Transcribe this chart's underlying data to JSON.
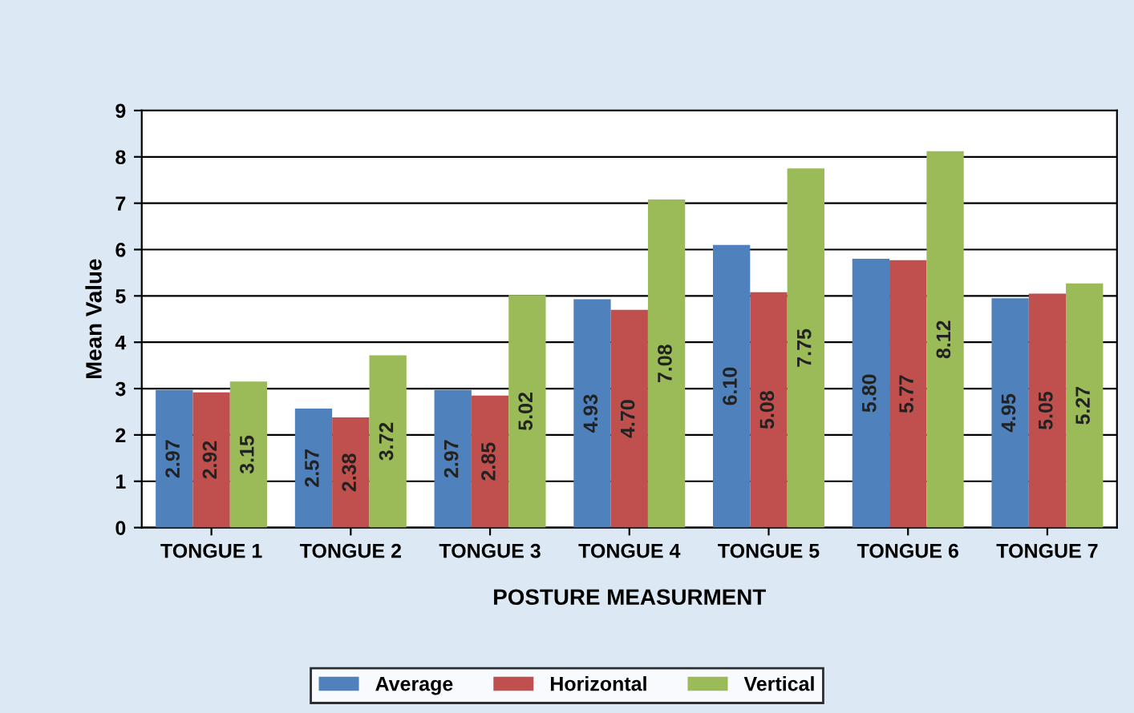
{
  "chart_data": {
    "type": "bar",
    "xlabel": "POSTURE MEASURMENT",
    "ylabel": "Mean Value",
    "categories": [
      "TONGUE 1",
      "TONGUE 2",
      "TONGUE 3",
      "TONGUE 4",
      "TONGUE 5",
      "TONGUE 6",
      "TONGUE 7"
    ],
    "series": [
      {
        "name": "Average",
        "color": "#4f81bd",
        "values": [
          2.97,
          2.57,
          2.97,
          4.93,
          6.1,
          5.8,
          4.95
        ],
        "value_labels": [
          "2.97",
          "2.57",
          "2.97",
          "4.93",
          "6.10",
          "5.80",
          "4.95"
        ]
      },
      {
        "name": "Horizontal",
        "color": "#c0504d",
        "values": [
          2.92,
          2.38,
          2.85,
          4.7,
          5.08,
          5.77,
          5.05
        ],
        "value_labels": [
          "2.92",
          "2.38",
          "2.85",
          "4.70",
          "5.08",
          "5.77",
          "5.05"
        ]
      },
      {
        "name": "Vertical",
        "color": "#9bbb59",
        "values": [
          3.15,
          3.72,
          5.02,
          7.08,
          7.75,
          8.12,
          5.27
        ],
        "value_labels": [
          "3.15",
          "3.72",
          "5.02",
          "7.08",
          "7.75",
          "8.12",
          "5.27"
        ]
      }
    ],
    "ylim": [
      0,
      9
    ],
    "yticks": [
      0,
      1,
      2,
      3,
      4,
      5,
      6,
      7,
      8,
      9
    ],
    "grid": "y",
    "legend": "bottom"
  }
}
